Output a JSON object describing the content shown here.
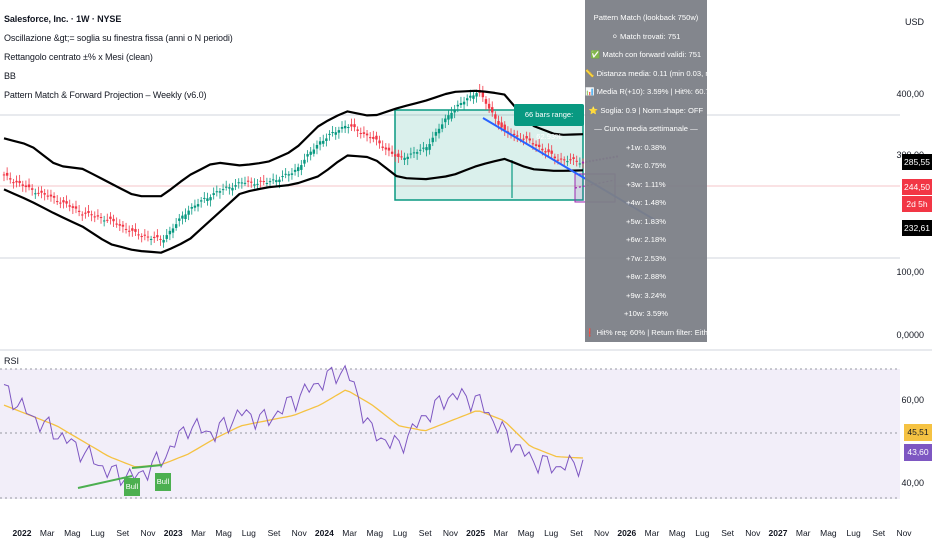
{
  "header": {
    "symbol_line": "Salesforce, Inc. · 1W · NYSE",
    "indicator_1": "Oscillazione &gt;= soglia su finestra fissa (anni o N periodi)",
    "indicator_2": "Rettangolo centrato ±% x Mesi (clean)",
    "indicator_3": "BB",
    "indicator_4": "Pattern Match & Forward Projection – Weekly (v6.0)"
  },
  "price_axis": {
    "currency": "USD",
    "labels": [
      "400,00",
      "300,00",
      "200,00",
      "100,00",
      "0,0000"
    ],
    "tags": [
      {
        "text": "285,55",
        "color": "#000000"
      },
      {
        "text": "244,50",
        "color": "#f23645"
      },
      {
        "text": "2d 5h",
        "color": "#f23645"
      },
      {
        "text": "232,61",
        "color": "#000000"
      }
    ]
  },
  "range_box": {
    "label": "66 bars range: 62.93%",
    "color": "#089981"
  },
  "info_panel": {
    "lines": [
      "Pattern Match (lookback 750w)",
      "⚪ Match trovati: 751",
      "✅ Match con forward validi: 751",
      "📏 Distanza media: 0.11 (min 0.03, max 0.368)",
      "📊 Media R(+10): 3.59% | Hit%: 60.7%",
      "⭐ Soglia: 0.9 | Norm.shape: OFF",
      "— Curva media settimanale —",
      "+1w: 0.38%",
      "+2w: 0.75%",
      "+3w: 1.11%",
      "+4w: 1.48%",
      "+5w: 1.83%",
      "+6w: 2.18%",
      "+7w: 2.53%",
      "+8w: 2.88%",
      "+9w: 3.24%",
      "+10w: 3.59%",
      "❗ Hit% req: 60% | Return filter: Either ≥ 1.5%"
    ]
  },
  "rsi": {
    "label": "RSI",
    "axis_labels": [
      "60,00",
      "40,00"
    ],
    "value_rsi": "43,60",
    "value_ma": "45,51",
    "rsi_color": "#7e57c2",
    "ma_color": "#f5c242",
    "bull_labels": [
      "Bull",
      "Bull"
    ]
  },
  "x_axis": {
    "labels": [
      {
        "t": "2022",
        "bold": true
      },
      {
        "t": "Mar"
      },
      {
        "t": "Mag"
      },
      {
        "t": "Lug"
      },
      {
        "t": "Set"
      },
      {
        "t": "Nov"
      },
      {
        "t": "2023",
        "bold": true
      },
      {
        "t": "Mar"
      },
      {
        "t": "Mag"
      },
      {
        "t": "Lug"
      },
      {
        "t": "Set"
      },
      {
        "t": "Nov"
      },
      {
        "t": "2024",
        "bold": true
      },
      {
        "t": "Mar"
      },
      {
        "t": "Mag"
      },
      {
        "t": "Lug"
      },
      {
        "t": "Set"
      },
      {
        "t": "Nov"
      },
      {
        "t": "2025",
        "bold": true
      },
      {
        "t": "Mar"
      },
      {
        "t": "Mag"
      },
      {
        "t": "Lug"
      },
      {
        "t": "Set"
      },
      {
        "t": "Nov"
      },
      {
        "t": "2026",
        "bold": true
      },
      {
        "t": "Mar"
      },
      {
        "t": "Mag"
      },
      {
        "t": "Lug"
      },
      {
        "t": "Set"
      },
      {
        "t": "Nov"
      },
      {
        "t": "2027",
        "bold": true
      },
      {
        "t": "Mar"
      },
      {
        "t": "Mag"
      },
      {
        "t": "Lug"
      },
      {
        "t": "Set"
      },
      {
        "t": "Nov"
      }
    ]
  },
  "chart_data": {
    "type": "line",
    "title": "Salesforce, Inc. · 1W · NYSE",
    "ylim": [
      0,
      420
    ],
    "x": [
      "2022-01",
      "2022-03",
      "2022-05",
      "2022-07",
      "2022-09",
      "2022-11",
      "2023-01",
      "2023-03",
      "2023-05",
      "2023-07",
      "2023-09",
      "2023-11",
      "2024-01",
      "2024-03",
      "2024-05",
      "2024-07",
      "2024-09",
      "2024-11",
      "2025-01",
      "2025-03",
      "2025-05",
      "2025-07",
      "2025-09"
    ],
    "series": [
      {
        "values": [
          225,
          205,
          190,
          170,
          160,
          140,
          130,
          175,
          200,
          215,
          215,
          230,
          275,
          300,
          280,
          250,
          265,
          320,
          350,
          290,
          275,
          250,
          245
        ]
      },
      {
        "values": [
          280,
          270,
          240,
          235,
          215,
          195,
          195,
          225,
          245,
          240,
          245,
          262,
          300,
          320,
          312,
          325,
          335,
          348,
          350,
          345,
          300,
          285,
          286
        ]
      },
      {
        "values": [
          205,
          188,
          168,
          150,
          125,
          115,
          112,
          130,
          165,
          200,
          208,
          212,
          225,
          255,
          252,
          222,
          220,
          225,
          240,
          250,
          235,
          232,
          233
        ]
      }
    ],
    "projection": [
      244.5,
      245.4,
      246.3,
      247.2,
      248.1,
      249.0,
      249.8,
      250.7,
      251.5,
      252.4,
      253.3
    ]
  }
}
